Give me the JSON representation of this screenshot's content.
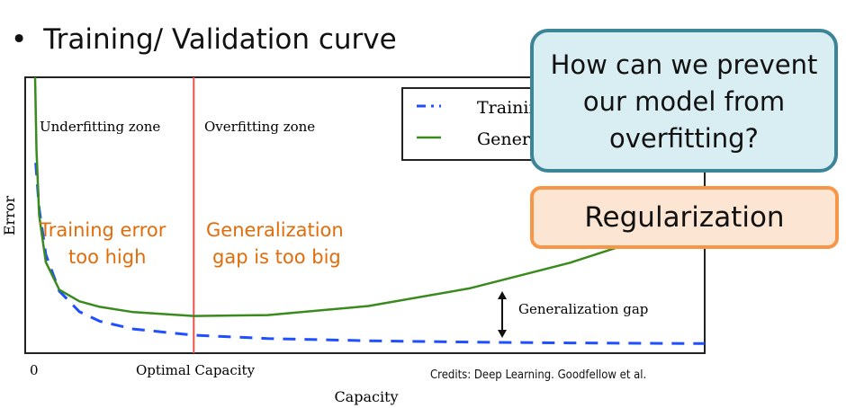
{
  "slide": {
    "bullet": "•",
    "title": "Training/ Validation curve",
    "credits": "Credits: Deep Learning. Goodfellow et al."
  },
  "callout": {
    "question": "How can we prevent our model from overfitting?",
    "answer": "Regularization"
  },
  "colors": {
    "training": "#1f4fff",
    "generalization": "#3a8a1e",
    "optimal_line": "#f0504a",
    "annotation": "#e36c09",
    "callout_border": "#3c8497",
    "callout_fill": "#d9eef3",
    "answer_border": "#f79646",
    "answer_fill": "#fde5d3"
  },
  "chart_data": {
    "type": "line",
    "xlabel": "Capacity",
    "ylabel": "Error",
    "x_ticks": [
      "0",
      "Optimal Capacity"
    ],
    "optimal_capacity": 2.4,
    "xlim": [
      0,
      10
    ],
    "ylim": [
      0,
      10
    ],
    "grid": false,
    "legend_placement": "top-right",
    "zones": [
      "Underfitting zone",
      "Overfitting zone"
    ],
    "annotations": {
      "left": "Training error too high",
      "right": "Generalization gap is too big",
      "gap": "Generalization gap"
    },
    "series": [
      {
        "name": "Training error",
        "style": "dashed",
        "x": [
          0.05,
          0.1,
          0.2,
          0.4,
          0.7,
          1,
          1.5,
          2.4,
          3.5,
          5,
          6.5,
          8,
          10
        ],
        "y": [
          6.9,
          5.25,
          3.58,
          2.25,
          1.5,
          1.16,
          0.875,
          0.65,
          0.53,
          0.45,
          0.4,
          0.37,
          0.35
        ]
      },
      {
        "name": "Generalization error",
        "style": "solid",
        "x": [
          0.04,
          0.06,
          0.1,
          0.2,
          0.4,
          0.7,
          1,
          1.5,
          2.4,
          3.5,
          5,
          6.5,
          8,
          9,
          10
        ],
        "y": [
          10,
          7.4,
          5.0,
          3.3,
          2.3,
          1.88,
          1.68,
          1.49,
          1.35,
          1.38,
          1.71,
          2.35,
          3.28,
          4.07,
          5.0
        ]
      }
    ]
  }
}
